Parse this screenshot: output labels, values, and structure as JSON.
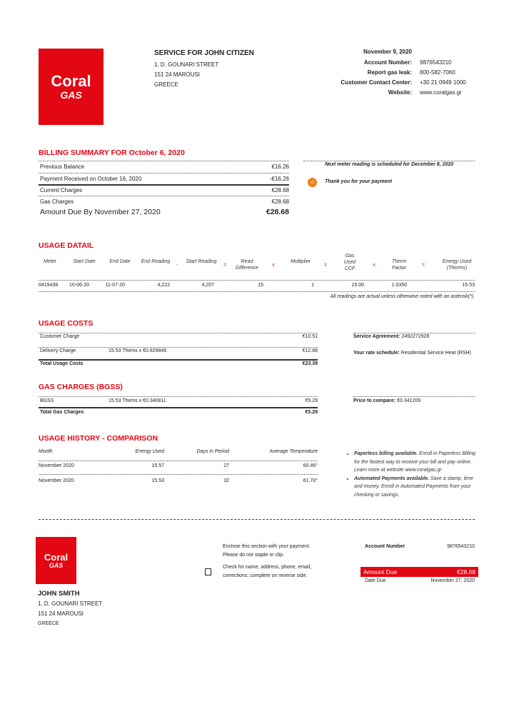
{
  "brand": {
    "name": "Coral",
    "sub": "GAS",
    "color": "#e30613"
  },
  "service": {
    "title": "SERVICE FOR JOHN CITIZEN",
    "address": [
      "1, D. GOUNARI STREET",
      "151 24 MAROUSI",
      "GREECE"
    ]
  },
  "header_info": {
    "date": "November 9, 2020",
    "rows": [
      {
        "label": "Account Number:",
        "value": "9876543210"
      },
      {
        "label": "Report gas leak:",
        "value": "800-582-7060"
      },
      {
        "label": "Customer Contact Center:",
        "value": "+30 21 0949 1000"
      },
      {
        "label": "Website:",
        "value": "www.coralgas.gr"
      }
    ]
  },
  "billing": {
    "title": "BILLING SUMMARY FOR October 6, 2020",
    "rows": [
      {
        "label": "Previous Balance",
        "value": "€16.26"
      },
      {
        "label": "Payment Received on October 16, 2020",
        "value": "-€16.26"
      },
      {
        "label": "Current Charges",
        "value": "€28.68"
      },
      {
        "label": "Gas Charges",
        "value": "€28.68"
      }
    ],
    "amount_due_label": "Amount Due By November 27, 2020",
    "amount_due": "€28.68",
    "next_reading": "Next meter reading is scheduled for December 8, 2020",
    "thanks": "Thank you for your payment"
  },
  "usage_detail": {
    "title": "USAGE DATAIL",
    "headers": [
      "Meter",
      "Start Date",
      "End Date",
      "End Reading",
      "-",
      "Start Reading",
      "=",
      "Read Difference",
      "x",
      "Multiplier",
      "=",
      "Gas Used CCF",
      "x",
      "Therm Factor",
      "=",
      "Energy Used (Therms)"
    ],
    "row": [
      "0419438",
      "10-06-20",
      "11-07-20",
      "4,222",
      "4,207",
      "15",
      "1",
      "15.00",
      "1.0350",
      "15.53"
    ],
    "note": "All readings are actual unless otherwise noted with an asterisk(*)."
  },
  "usage_costs": {
    "title": "USAGE COSTS",
    "rows": [
      {
        "label": "Customer Charge",
        "detail": "",
        "value": "€10.51"
      },
      {
        "label": "Delivery Charge",
        "detail": "15.53 Thems x €0.829846",
        "value": "€12.88"
      }
    ],
    "total_label": "Total Usage Costs",
    "total": "€23.39",
    "service_agreement_label": "Service Agreement:",
    "service_agreement": "2492272928",
    "rate_label": "Your rate schedule:",
    "rate": "Residential Service Heat (RSH)"
  },
  "gas_charges": {
    "title": "GAS CHARGES (BGSS)",
    "rows": [
      {
        "label": "BGSS",
        "detail": "15.53 Thems x €0.340811",
        "value": "€5.29"
      }
    ],
    "total_label": "Total Gas Charges",
    "total": "€5.29",
    "price_label": "Price to compare:",
    "price": "€0.341209"
  },
  "history": {
    "title": "USAGE HISTORY - COMPARISON",
    "headers": [
      "Month",
      "Energy Used",
      "Days in Period",
      "Average Temperature"
    ],
    "rows": [
      [
        "November 2020",
        "15.57",
        "27",
        "60.46°"
      ],
      [
        "November 2020",
        "15.53",
        "32",
        "61.70°"
      ]
    ]
  },
  "tips": [
    {
      "bold": "Paperless billing available.",
      "text": " Enroll in Paperless Billing for the fastest way to receive your bill and pay online. Learn more at website www.coralgas.gr"
    },
    {
      "bold": "Automated Payments available.",
      "text": " Save a stamp, time and money. Enroll in Automated Payments from your checking or savings."
    }
  ],
  "stub": {
    "name": "JOHN SMITH",
    "address": [
      "1, D. GOUNARI STREET",
      "151 24 MAROUSI",
      "GREECE"
    ],
    "enclose": [
      "Enclose this section with your payment.",
      "Please do not staple or clip."
    ],
    "check": [
      "Check for name, address, phone, email,",
      "corrections; complete on reverse side."
    ],
    "account_label": "Account Number",
    "account": "9876543210",
    "amount_label": "Amount Due",
    "amount": "€28.68",
    "date_label": "Date Due",
    "date": "November 27, 2020"
  }
}
